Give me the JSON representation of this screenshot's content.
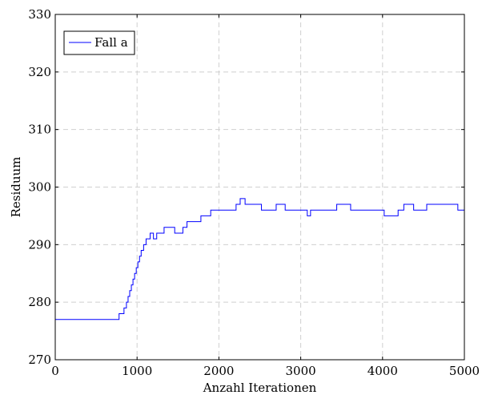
{
  "chart_data": {
    "type": "line",
    "xlabel": "Anzahl Iterationen",
    "ylabel": "Residuum",
    "xlim": [
      0,
      5000
    ],
    "ylim": [
      270,
      330
    ],
    "xticks": [
      0,
      1000,
      2000,
      3000,
      4000,
      5000
    ],
    "yticks": [
      270,
      280,
      290,
      300,
      310,
      320,
      330
    ],
    "grid": true,
    "legend_position": "top-left",
    "series": [
      {
        "name": "Fall a",
        "color": "#0000ff",
        "step": true,
        "x": [
          0,
          780,
          840,
          870,
          890,
          910,
          930,
          950,
          970,
          990,
          1010,
          1030,
          1050,
          1080,
          1110,
          1160,
          1200,
          1240,
          1330,
          1460,
          1560,
          1610,
          1780,
          1830,
          1900,
          2010,
          2090,
          2210,
          2260,
          2320,
          2520,
          2700,
          2810,
          3080,
          3120,
          3150,
          3310,
          3440,
          3610,
          3800,
          3810,
          3820,
          3860,
          4020,
          4190,
          4260,
          4380,
          4540,
          4780,
          4920,
          5000
        ],
        "y": [
          277,
          278,
          279,
          280,
          281,
          282,
          283,
          284,
          285,
          286,
          287,
          288,
          289,
          290,
          291,
          292,
          291,
          292,
          293,
          292,
          293,
          294,
          295,
          295,
          296,
          296,
          296,
          297,
          298,
          297,
          296,
          297,
          296,
          295,
          296,
          296,
          296,
          297,
          296,
          296,
          296,
          296,
          296,
          295,
          296,
          297,
          296,
          297,
          297,
          296,
          296
        ]
      }
    ]
  }
}
